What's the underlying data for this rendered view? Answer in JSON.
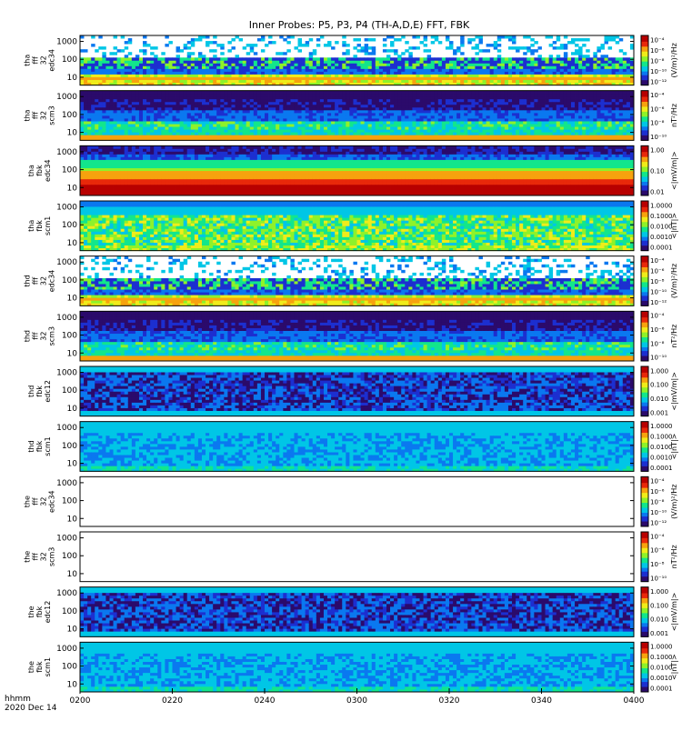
{
  "chart_data": {
    "type": "heatmap",
    "title": "Inner Probes: P5, P3, P4 (TH-A,D,E) FFT, FBK",
    "x_ticks": [
      "0200",
      "0220",
      "0240",
      "0300",
      "0320",
      "0340",
      "0400"
    ],
    "x_range": [
      "0200",
      "0400"
    ],
    "footer_label": "hhmm",
    "footer_date": "2020 Dec 14",
    "y_ticks": [
      "10",
      "100",
      "1000"
    ],
    "panels": [
      {
        "label": [
          "tha",
          "fff",
          "32",
          "edc34"
        ],
        "unit": "(V/m)²/Hz",
        "colorbar_ticks": [
          "10⁻⁴",
          "10⁻⁶",
          "10⁻⁸",
          "10⁻¹⁰",
          "10⁻¹²"
        ],
        "scheme": "fff_edc",
        "empty": false
      },
      {
        "label": [
          "tha",
          "fff",
          "32",
          "scm3"
        ],
        "unit": "nT²/Hz",
        "colorbar_ticks": [
          "10⁻⁴",
          "10⁻⁶",
          "10⁻⁸",
          "10⁻¹⁰"
        ],
        "scheme": "fff_scm",
        "empty": false
      },
      {
        "label": [
          "tha",
          "fbk",
          "edc34"
        ],
        "unit": "<|mV/m|>",
        "colorbar_ticks": [
          "1.00",
          "0.10",
          "0.01"
        ],
        "scheme": "fbk_edc_red",
        "empty": false
      },
      {
        "label": [
          "tha",
          "fbk",
          "scm1"
        ],
        "unit": "<|nT|>",
        "colorbar_ticks": [
          "1.0000",
          "0.1000",
          "0.0100",
          "0.0010",
          "0.0001"
        ],
        "scheme": "fbk_scm_green",
        "empty": false
      },
      {
        "label": [
          "thd",
          "fff",
          "32",
          "edc34"
        ],
        "unit": "(V/m)²/Hz",
        "colorbar_ticks": [
          "10⁻⁴",
          "10⁻⁶",
          "10⁻⁸",
          "10⁻¹⁰",
          "10⁻¹²"
        ],
        "scheme": "fff_edc",
        "empty": false
      },
      {
        "label": [
          "thd",
          "fff",
          "32",
          "scm3"
        ],
        "unit": "nT²/Hz",
        "colorbar_ticks": [
          "10⁻⁴",
          "10⁻⁶",
          "10⁻⁸",
          "10⁻¹⁰"
        ],
        "scheme": "fff_scm",
        "empty": false
      },
      {
        "label": [
          "thd",
          "fbk",
          "edc12"
        ],
        "unit": "<|mV/m|>",
        "colorbar_ticks": [
          "1.000",
          "0.100",
          "0.010",
          "0.001"
        ],
        "scheme": "fbk_edc_blue",
        "empty": false
      },
      {
        "label": [
          "thd",
          "fbk",
          "scm1"
        ],
        "unit": "<|nT|>",
        "colorbar_ticks": [
          "1.0000",
          "0.1000",
          "0.0100",
          "0.0010",
          "0.0001"
        ],
        "scheme": "fbk_scm_cyan",
        "empty": false
      },
      {
        "label": [
          "the",
          "fff",
          "32",
          "edc34"
        ],
        "unit": "(V/m)²/Hz",
        "colorbar_ticks": [
          "10⁻⁴",
          "10⁻⁶",
          "10⁻⁸",
          "10⁻¹⁰",
          "10⁻¹²"
        ],
        "scheme": "empty",
        "empty": true
      },
      {
        "label": [
          "the",
          "fff",
          "32",
          "scm3"
        ],
        "unit": "nT²/Hz",
        "colorbar_ticks": [
          "10⁻⁴",
          "10⁻⁶",
          "10⁻⁸",
          "10⁻¹⁰"
        ],
        "scheme": "empty",
        "empty": true
      },
      {
        "label": [
          "the",
          "fbk",
          "edc12"
        ],
        "unit": "<|mV/m|>",
        "colorbar_ticks": [
          "1.000",
          "0.100",
          "0.010",
          "0.001"
        ],
        "scheme": "fbk_edc_blue",
        "empty": false
      },
      {
        "label": [
          "the",
          "fbk",
          "scm1"
        ],
        "unit": "<|nT|>",
        "colorbar_ticks": [
          "1.0000",
          "0.1000",
          "0.0100",
          "0.0010",
          "0.0001"
        ],
        "scheme": "fbk_scm_cyan",
        "empty": false
      }
    ],
    "colorscale": [
      "#2b0a6b",
      "#1c2fd0",
      "#0a78f0",
      "#00c6e6",
      "#12e68c",
      "#8ef22a",
      "#f0ec1a",
      "#f7a20e",
      "#e8280a",
      "#b80000"
    ]
  }
}
